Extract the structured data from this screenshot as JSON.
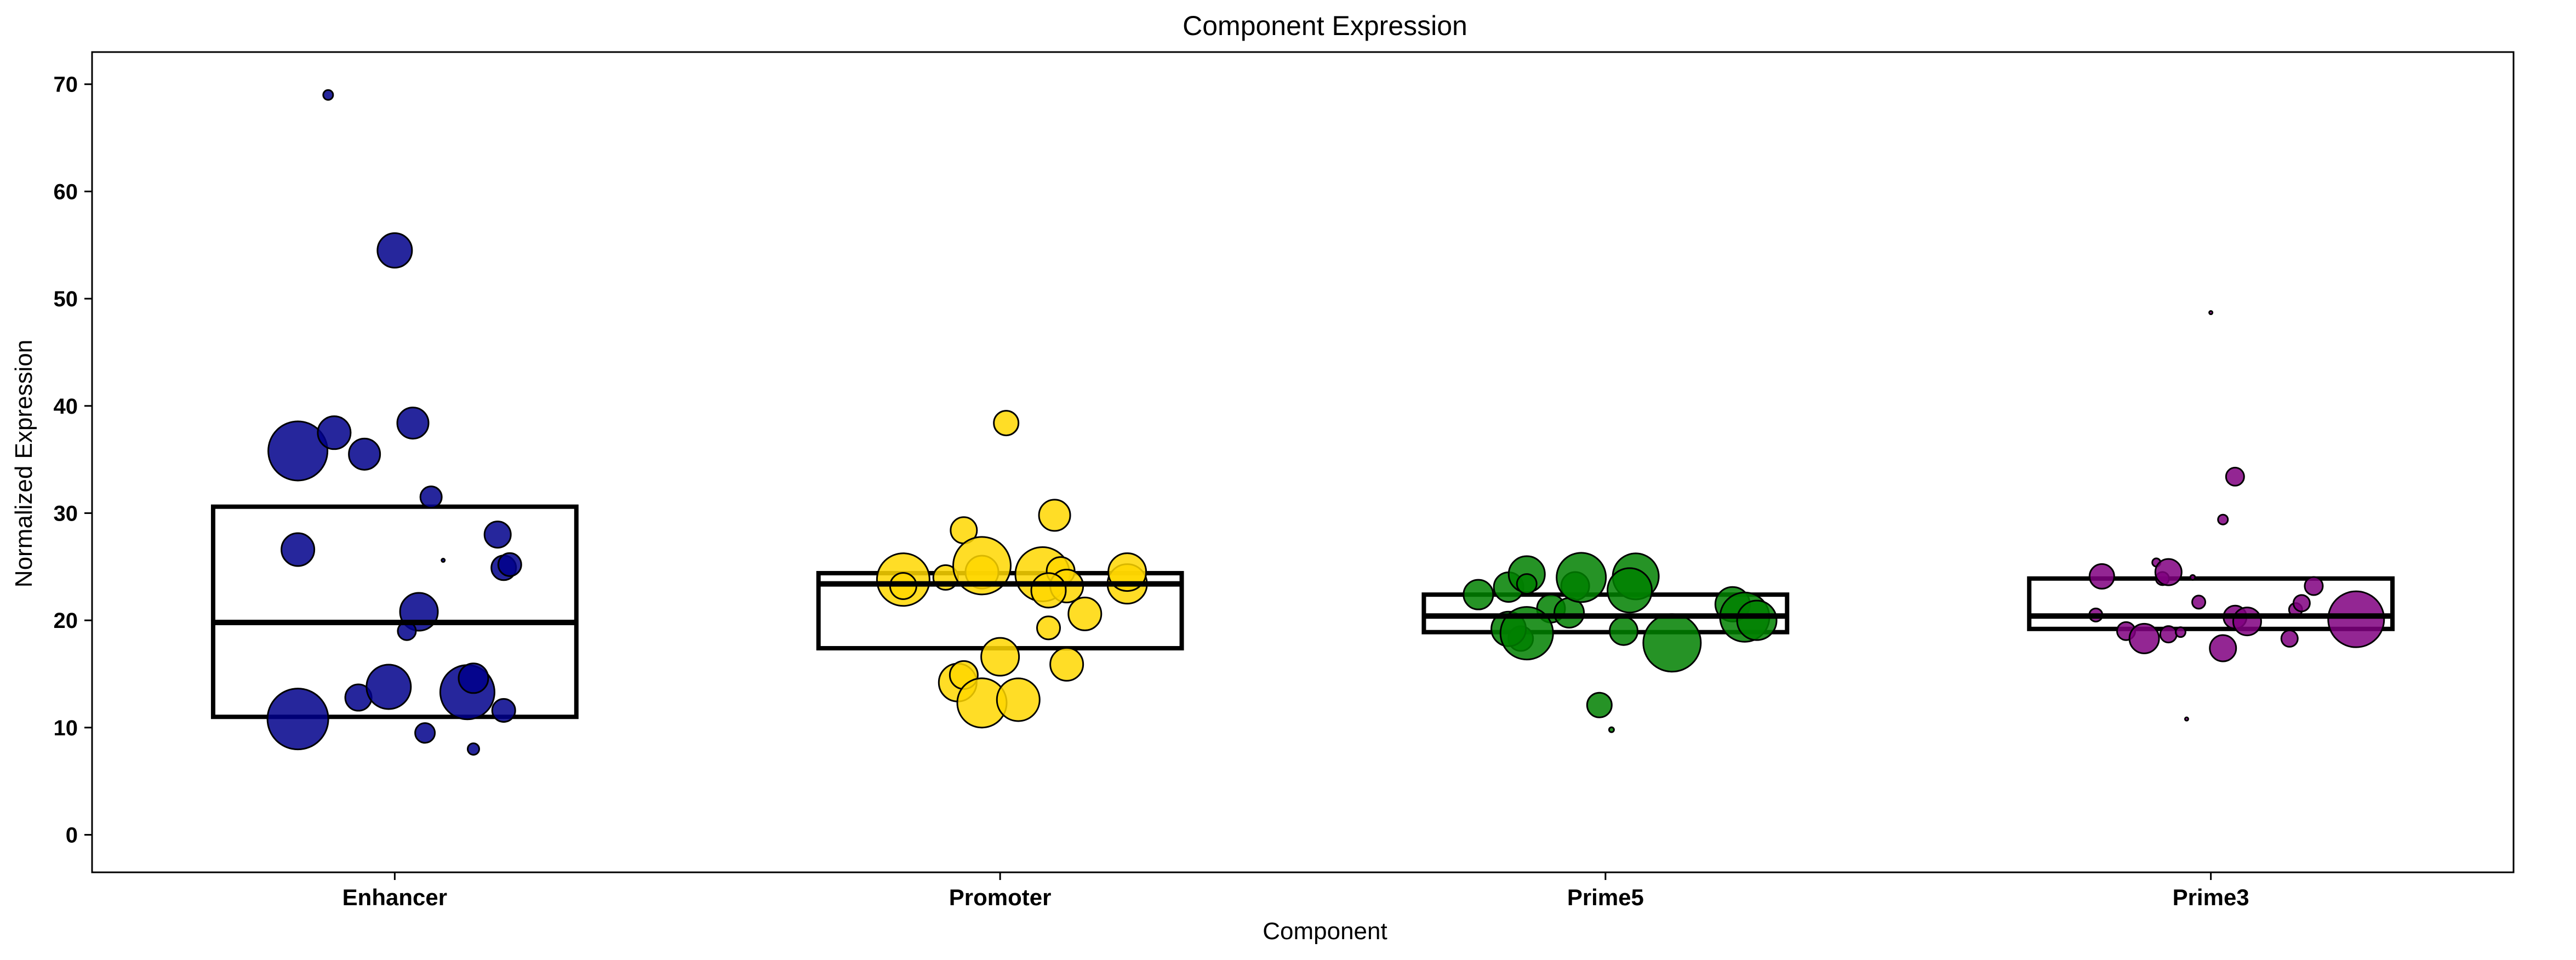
{
  "chart_data": {
    "type": "scatter",
    "subtype": "box-with-jittered-bubbles",
    "title": "Component Expression",
    "xlabel": "Component",
    "ylabel": "Normalized Expression",
    "ylim": [
      -3.5,
      73
    ],
    "yticks": [
      0,
      10,
      20,
      30,
      40,
      50,
      60,
      70
    ],
    "grid": false,
    "legend": "none",
    "categories": [
      "Enhancer",
      "Promoter",
      "Prime5",
      "Prime3"
    ],
    "colors": {
      "Enhancer": "#00008b",
      "Promoter": "#ffd700",
      "Prime5": "#008000",
      "Prime3": "#800080"
    },
    "boxes": [
      {
        "category": "Enhancer",
        "q1": 11.0,
        "median": 19.8,
        "q3": 30.6
      },
      {
        "category": "Promoter",
        "q1": 17.4,
        "median": 23.4,
        "q3": 24.4
      },
      {
        "category": "Prime5",
        "q1": 18.9,
        "median": 20.4,
        "q3": 22.4
      },
      {
        "category": "Prime3",
        "q1": 19.2,
        "median": 20.4,
        "q3": 23.9
      }
    ],
    "series": [
      {
        "category": "Enhancer",
        "points": [
          {
            "x": -0.11,
            "y": 69.0,
            "size": 6
          },
          {
            "x": 0.0,
            "y": 54.5,
            "size": 21
          },
          {
            "x": -0.16,
            "y": 35.8,
            "size": 36
          },
          {
            "x": -0.1,
            "y": 37.5,
            "size": 20
          },
          {
            "x": -0.05,
            "y": 35.5,
            "size": 19
          },
          {
            "x": 0.03,
            "y": 38.4,
            "size": 19
          },
          {
            "x": 0.06,
            "y": 31.5,
            "size": 13
          },
          {
            "x": -0.16,
            "y": 26.6,
            "size": 20
          },
          {
            "x": 0.08,
            "y": 25.6,
            "size": 2
          },
          {
            "x": 0.17,
            "y": 28.0,
            "size": 16
          },
          {
            "x": 0.18,
            "y": 24.9,
            "size": 15
          },
          {
            "x": 0.19,
            "y": 25.2,
            "size": 14
          },
          {
            "x": 0.04,
            "y": 20.8,
            "size": 23
          },
          {
            "x": 0.02,
            "y": 19.0,
            "size": 11
          },
          {
            "x": -0.16,
            "y": 10.8,
            "size": 37
          },
          {
            "x": -0.06,
            "y": 12.8,
            "size": 16
          },
          {
            "x": -0.01,
            "y": 13.8,
            "size": 27
          },
          {
            "x": 0.12,
            "y": 13.3,
            "size": 33
          },
          {
            "x": 0.13,
            "y": 14.6,
            "size": 18
          },
          {
            "x": 0.18,
            "y": 11.6,
            "size": 14
          },
          {
            "x": 0.05,
            "y": 9.5,
            "size": 12
          },
          {
            "x": 0.13,
            "y": 8.0,
            "size": 7
          }
        ]
      },
      {
        "category": "Promoter",
        "points": [
          {
            "x": 0.01,
            "y": 38.4,
            "size": 15
          },
          {
            "x": 0.09,
            "y": 29.8,
            "size": 19
          },
          {
            "x": -0.06,
            "y": 28.4,
            "size": 16
          },
          {
            "x": -0.16,
            "y": 23.8,
            "size": 32
          },
          {
            "x": -0.09,
            "y": 24.0,
            "size": 15
          },
          {
            "x": -0.16,
            "y": 23.2,
            "size": 16
          },
          {
            "x": -0.03,
            "y": 24.5,
            "size": 20
          },
          {
            "x": -0.03,
            "y": 25.1,
            "size": 35
          },
          {
            "x": 0.07,
            "y": 24.3,
            "size": 33
          },
          {
            "x": 0.1,
            "y": 24.6,
            "size": 17
          },
          {
            "x": 0.11,
            "y": 23.2,
            "size": 20
          },
          {
            "x": 0.08,
            "y": 22.8,
            "size": 21
          },
          {
            "x": 0.14,
            "y": 20.6,
            "size": 20
          },
          {
            "x": 0.08,
            "y": 19.3,
            "size": 14
          },
          {
            "x": 0.21,
            "y": 23.4,
            "size": 24
          },
          {
            "x": 0.21,
            "y": 24.5,
            "size": 23
          },
          {
            "x": 0.0,
            "y": 16.6,
            "size": 23
          },
          {
            "x": 0.11,
            "y": 15.9,
            "size": 20
          },
          {
            "x": -0.07,
            "y": 14.2,
            "size": 23
          },
          {
            "x": -0.06,
            "y": 14.9,
            "size": 17
          },
          {
            "x": -0.03,
            "y": 12.3,
            "size": 30
          },
          {
            "x": 0.03,
            "y": 12.6,
            "size": 26
          }
        ]
      },
      {
        "category": "Prime5",
        "points": [
          {
            "x": -0.21,
            "y": 22.4,
            "size": 18
          },
          {
            "x": -0.16,
            "y": 23.1,
            "size": 18
          },
          {
            "x": -0.13,
            "y": 24.3,
            "size": 22
          },
          {
            "x": -0.13,
            "y": 23.4,
            "size": 12
          },
          {
            "x": -0.09,
            "y": 21.1,
            "size": 17
          },
          {
            "x": -0.05,
            "y": 23.2,
            "size": 17
          },
          {
            "x": -0.06,
            "y": 20.7,
            "size": 18
          },
          {
            "x": -0.14,
            "y": 18.3,
            "size": 15
          },
          {
            "x": -0.16,
            "y": 19.2,
            "size": 21
          },
          {
            "x": -0.13,
            "y": 18.8,
            "size": 32
          },
          {
            "x": -0.04,
            "y": 24.0,
            "size": 30
          },
          {
            "x": 0.05,
            "y": 24.1,
            "size": 28
          },
          {
            "x": 0.04,
            "y": 22.8,
            "size": 27
          },
          {
            "x": 0.03,
            "y": 19.0,
            "size": 17
          },
          {
            "x": 0.11,
            "y": 17.9,
            "size": 35
          },
          {
            "x": 0.21,
            "y": 21.5,
            "size": 21
          },
          {
            "x": 0.23,
            "y": 20.3,
            "size": 30
          },
          {
            "x": 0.25,
            "y": 20.0,
            "size": 24
          },
          {
            "x": -0.01,
            "y": 12.1,
            "size": 15
          },
          {
            "x": 0.01,
            "y": 9.8,
            "size": 3
          }
        ]
      },
      {
        "category": "Prime3",
        "points": [
          {
            "x": 0.0,
            "y": 48.7,
            "size": 2
          },
          {
            "x": 0.04,
            "y": 33.4,
            "size": 11
          },
          {
            "x": 0.02,
            "y": 29.4,
            "size": 6
          },
          {
            "x": -0.18,
            "y": 24.1,
            "size": 15
          },
          {
            "x": -0.09,
            "y": 25.4,
            "size": 5
          },
          {
            "x": -0.08,
            "y": 23.9,
            "size": 8
          },
          {
            "x": -0.07,
            "y": 24.5,
            "size": 16
          },
          {
            "x": -0.03,
            "y": 24.0,
            "size": 3
          },
          {
            "x": 0.17,
            "y": 23.2,
            "size": 11
          },
          {
            "x": -0.02,
            "y": 21.7,
            "size": 8
          },
          {
            "x": -0.19,
            "y": 20.5,
            "size": 8
          },
          {
            "x": -0.14,
            "y": 19.0,
            "size": 11
          },
          {
            "x": -0.11,
            "y": 18.3,
            "size": 18
          },
          {
            "x": -0.07,
            "y": 18.7,
            "size": 10
          },
          {
            "x": -0.05,
            "y": 18.9,
            "size": 6
          },
          {
            "x": 0.04,
            "y": 20.3,
            "size": 14
          },
          {
            "x": 0.06,
            "y": 19.9,
            "size": 17
          },
          {
            "x": 0.02,
            "y": 17.4,
            "size": 16
          },
          {
            "x": 0.13,
            "y": 18.3,
            "size": 10
          },
          {
            "x": 0.14,
            "y": 21.0,
            "size": 8
          },
          {
            "x": 0.15,
            "y": 21.6,
            "size": 10
          },
          {
            "x": 0.24,
            "y": 20.1,
            "size": 34
          },
          {
            "x": -0.04,
            "y": 10.8,
            "size": 2
          }
        ]
      }
    ]
  }
}
